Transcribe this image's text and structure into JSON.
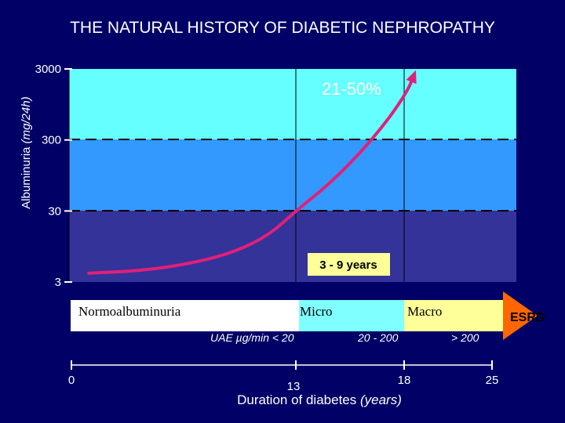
{
  "chart_data": {
    "type": "area",
    "title": "THE NATURAL HISTORY OF DIABETIC NEPHROPATHY",
    "ylabel": "Albuminuria",
    "ylabel_unit": "(mg/24h)",
    "xlabel": "Duration of diabetes",
    "xlabel_unit": "(years)",
    "y_scale": "log",
    "y_ticks": [
      "3000",
      "300",
      "30",
      "3"
    ],
    "x_ticks": [
      "0",
      "13",
      "18",
      "25"
    ],
    "zones": [
      {
        "name": "Normoalbuminuria",
        "color": "#33339a"
      },
      {
        "name": "Micro",
        "color": "#3399ff"
      },
      {
        "name": "Macro",
        "color": "#66ffff"
      }
    ],
    "stage_bar": [
      {
        "label": "Normoalbuminuria",
        "uae": "UAE µg/min < 20",
        "color": "#ffffff"
      },
      {
        "label": "Micro",
        "uae": "20 - 200",
        "color": "#7fffff"
      },
      {
        "label": "Macro",
        "uae": "> 200",
        "color": "#ffff99"
      },
      {
        "label": "ESRD",
        "uae": "",
        "color": "#ff6600"
      }
    ],
    "curve_color": "#e0207a",
    "series": [
      {
        "values_x": [
          1,
          4,
          7,
          9.5,
          11.5,
          13,
          14.5,
          16,
          17.3,
          18.3,
          18.8
        ],
        "values_y": [
          4,
          4.3,
          5.5,
          8,
          14,
          30,
          70,
          200,
          600,
          1500,
          2500
        ]
      }
    ],
    "annotations": {
      "percent": "21-50%",
      "years": "3 - 9 years"
    }
  }
}
